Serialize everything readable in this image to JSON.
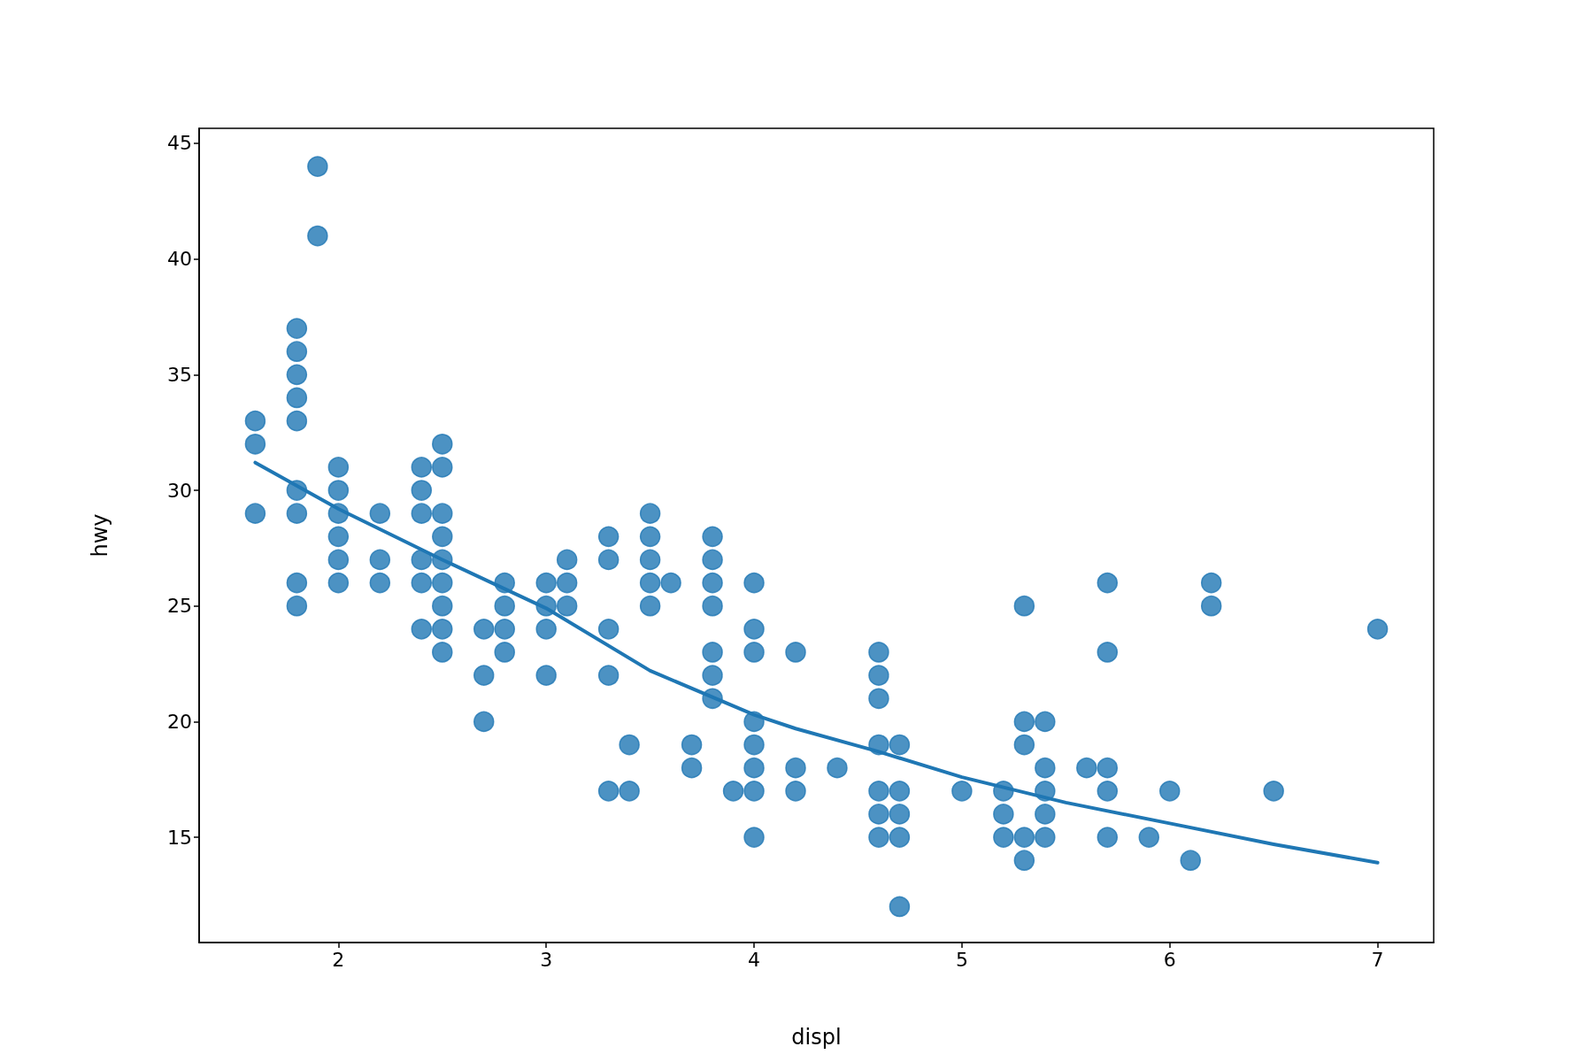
{
  "chart_data": {
    "type": "scatter",
    "xlabel": "displ",
    "ylabel": "hwy",
    "xlim": [
      1.33,
      7.27
    ],
    "xticks": [
      2,
      3,
      4,
      5,
      6,
      7
    ],
    "ylim": [
      10.45,
      45.65
    ],
    "yticks": [
      15,
      20,
      25,
      30,
      35,
      40,
      45
    ],
    "grid": false,
    "marker": "circle",
    "series": [
      {
        "color": "#1f77b4",
        "x": [
          1.6,
          1.6,
          1.6,
          1.8,
          1.8,
          1.8,
          1.8,
          1.8,
          1.8,
          1.8,
          1.8,
          1.8,
          1.9,
          1.9,
          2.0,
          2.0,
          2.0,
          2.0,
          2.0,
          2.0,
          2.2,
          2.2,
          2.2,
          2.4,
          2.4,
          2.4,
          2.4,
          2.4,
          2.4,
          2.5,
          2.5,
          2.5,
          2.5,
          2.5,
          2.5,
          2.5,
          2.5,
          2.5,
          2.7,
          2.7,
          2.7,
          2.8,
          2.8,
          2.8,
          2.8,
          3.0,
          3.0,
          3.0,
          3.0,
          3.1,
          3.1,
          3.1,
          3.3,
          3.3,
          3.3,
          3.3,
          3.3,
          3.4,
          3.4,
          3.5,
          3.5,
          3.5,
          3.5,
          3.5,
          3.6,
          3.7,
          3.7,
          3.8,
          3.8,
          3.8,
          3.8,
          3.8,
          3.8,
          3.8,
          3.9,
          4.0,
          4.0,
          4.0,
          4.0,
          4.0,
          4.0,
          4.0,
          4.0,
          4.2,
          4.2,
          4.2,
          4.4,
          4.6,
          4.6,
          4.6,
          4.6,
          4.6,
          4.6,
          4.6,
          4.7,
          4.7,
          4.7,
          4.7,
          4.7,
          5.0,
          5.2,
          5.2,
          5.2,
          5.3,
          5.3,
          5.3,
          5.3,
          5.3,
          5.4,
          5.4,
          5.4,
          5.4,
          5.4,
          5.6,
          5.7,
          5.7,
          5.7,
          5.7,
          5.7,
          5.9,
          6.0,
          6.1,
          6.2,
          6.2,
          6.5,
          7.0
        ],
        "values": [
          33,
          32,
          29,
          37,
          36,
          35,
          34,
          33,
          30,
          29,
          26,
          25,
          44,
          41,
          31,
          30,
          29,
          28,
          27,
          26,
          29,
          27,
          26,
          31,
          30,
          29,
          27,
          26,
          24,
          32,
          31,
          29,
          28,
          27,
          26,
          25,
          24,
          23,
          24,
          22,
          20,
          26,
          25,
          24,
          23,
          26,
          25,
          24,
          22,
          27,
          26,
          25,
          28,
          27,
          24,
          22,
          17,
          19,
          17,
          29,
          28,
          27,
          26,
          25,
          26,
          19,
          18,
          28,
          27,
          26,
          25,
          23,
          22,
          21,
          17,
          26,
          24,
          23,
          20,
          19,
          18,
          17,
          15,
          23,
          18,
          17,
          18,
          23,
          22,
          21,
          19,
          17,
          16,
          15,
          19,
          17,
          16,
          15,
          12,
          17,
          17,
          16,
          15,
          25,
          20,
          19,
          15,
          14,
          20,
          18,
          17,
          16,
          15,
          18,
          26,
          23,
          18,
          17,
          15,
          15,
          17,
          14,
          26,
          25,
          17,
          24
        ]
      },
      {
        "type": "line",
        "color": "#1f77b4",
        "marker": "none",
        "line_style": "solid",
        "x": [
          1.6,
          2.0,
          2.5,
          3.0,
          3.5,
          4.0,
          4.2,
          4.6,
          5.0,
          5.5,
          6.0,
          6.5,
          7.0
        ],
        "values": [
          31.2,
          29.2,
          27.0,
          24.9,
          22.2,
          20.3,
          19.7,
          18.7,
          17.6,
          16.5,
          15.6,
          14.7,
          13.9
        ]
      }
    ]
  }
}
